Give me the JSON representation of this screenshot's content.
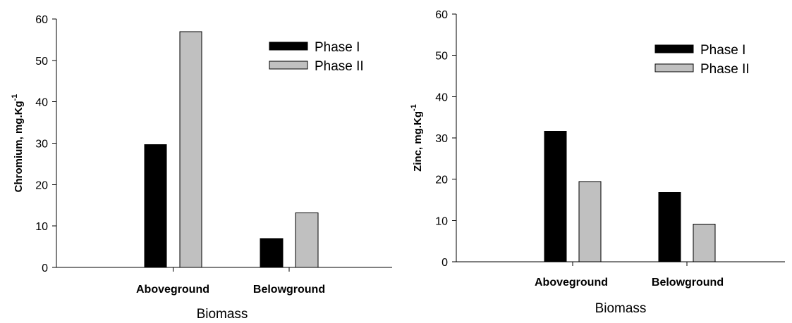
{
  "chart_data": [
    {
      "type": "bar",
      "categories": [
        "Aboveground",
        "Belowground"
      ],
      "series": [
        {
          "name": "Phase I",
          "values": [
            29.7,
            7.0
          ],
          "color": "#000000"
        },
        {
          "name": "Phase II",
          "values": [
            56.9,
            13.2
          ],
          "color": "#c0c0c0"
        }
      ],
      "xlabel": "Biomass",
      "ylabel": "Chromium, mg.Kg",
      "ylabel_sup": "-1",
      "ylim": [
        0,
        60
      ],
      "yticks": [
        "0",
        "10",
        "20",
        "30",
        "40",
        "50",
        "60"
      ],
      "grid": false,
      "legend_position": "top-right"
    },
    {
      "type": "bar",
      "categories": [
        "Aboveground",
        "Belowground"
      ],
      "series": [
        {
          "name": "Phase I",
          "values": [
            31.6,
            16.8
          ],
          "color": "#000000"
        },
        {
          "name": "Phase II",
          "values": [
            19.4,
            9.1
          ],
          "color": "#c0c0c0"
        }
      ],
      "xlabel": "Biomass",
      "ylabel": "Zinc, mg.Kg",
      "ylabel_sup": "-1",
      "ylim": [
        0,
        60
      ],
      "yticks": [
        "0",
        "10",
        "20",
        "30",
        "40",
        "50",
        "60"
      ],
      "grid": false,
      "legend_position": "top-right"
    }
  ]
}
